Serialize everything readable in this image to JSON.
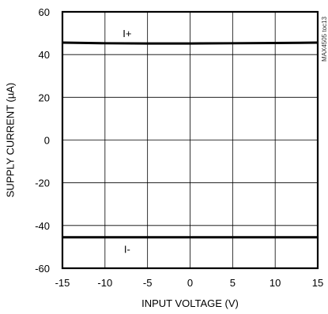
{
  "chart_data": {
    "type": "line",
    "xlabel": "INPUT VOLTAGE (V)",
    "ylabel": "SUPPLY CURRENT (µA)",
    "xlim": [
      -15,
      15
    ],
    "ylim": [
      -60,
      60
    ],
    "x_ticks": [
      -15,
      -10,
      -5,
      0,
      5,
      10,
      15
    ],
    "y_ticks": [
      -60,
      -40,
      -20,
      0,
      20,
      40,
      60
    ],
    "grid": true,
    "side_code": "MAX4505 toc13",
    "series": [
      {
        "name": "I+",
        "x": [
          -15,
          -10,
          -5,
          0,
          5,
          10,
          15
        ],
        "y": [
          45.6,
          45.3,
          45.2,
          45.2,
          45.3,
          45.4,
          45.6
        ]
      },
      {
        "name": "I-",
        "x": [
          -15,
          -10,
          -5,
          0,
          5,
          10,
          15
        ],
        "y": [
          -45.5,
          -45.5,
          -45.5,
          -45.5,
          -45.5,
          -45.5,
          -45.5
        ]
      }
    ]
  }
}
